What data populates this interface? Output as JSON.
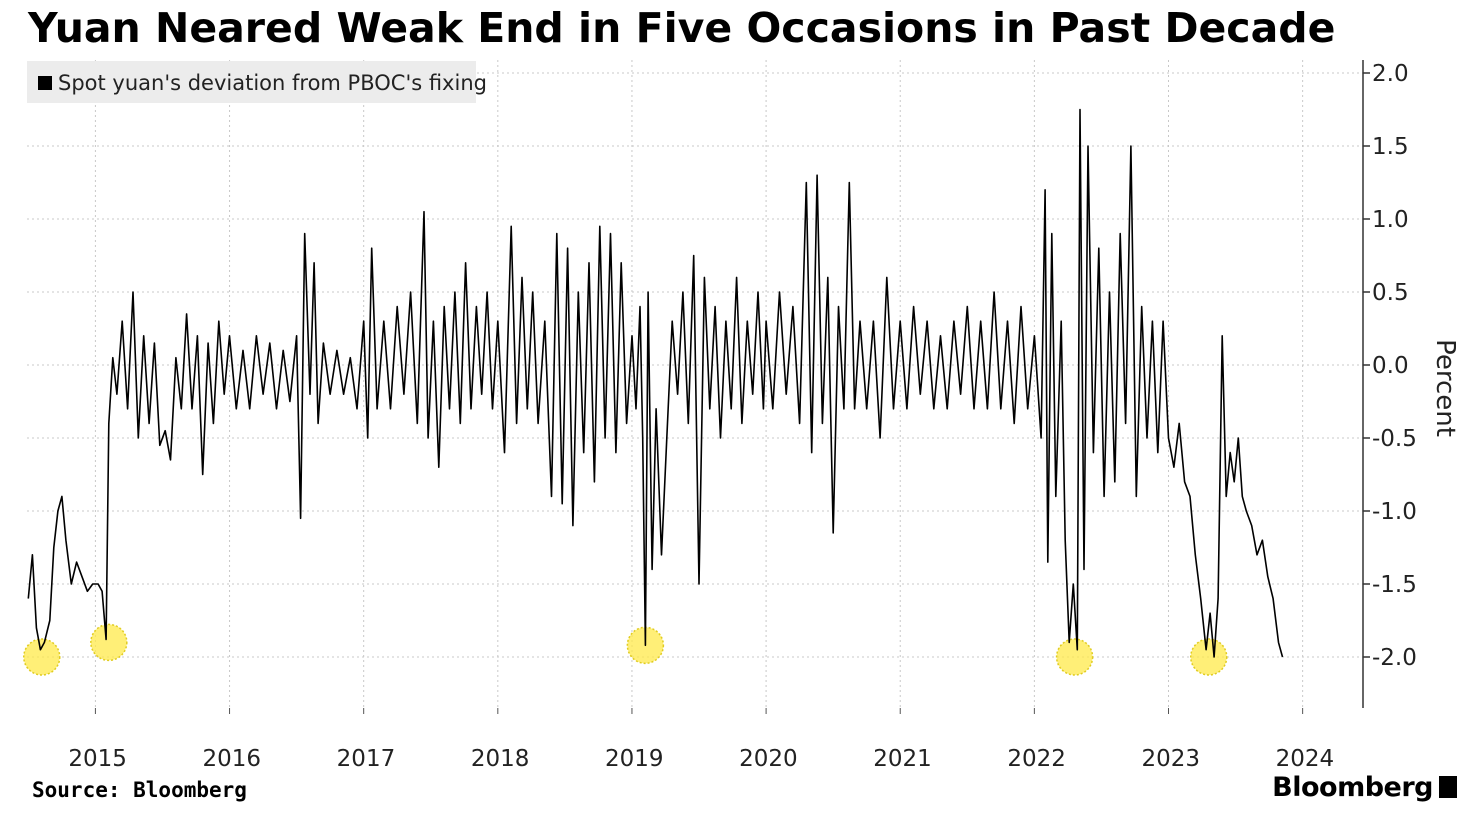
{
  "title": "Yuan Neared Weak End in Five Occasions in Past Decade",
  "source": "Source: Bloomberg",
  "brand": "Bloomberg",
  "colors": {
    "line": "#000000",
    "highlight": "#ffe94a",
    "grid": "#c8c8c8",
    "legend_bg": "#ececec"
  },
  "chart_data": {
    "type": "line",
    "legend": [
      "Spot yuan's deviation from PBOC's fixing"
    ],
    "ylabel": "Percent",
    "ylim": [
      -2.4,
      2.0
    ],
    "yticks": [
      2.0,
      1.5,
      1.0,
      0.5,
      0.0,
      -0.5,
      -1.0,
      -1.5,
      -2.0
    ],
    "ytick_labels": [
      "2.0",
      "1.5",
      "1.0",
      "0.5",
      "0.0",
      "-0.5",
      "-1.0",
      "-1.5",
      "-2.0"
    ],
    "xlim": [
      2014.49,
      2024.45
    ],
    "xticks": [
      2015,
      2016,
      2017,
      2018,
      2019,
      2020,
      2021,
      2022,
      2023,
      2024
    ],
    "xtick_labels": [
      "2015",
      "2016",
      "2017",
      "2018",
      "2019",
      "2020",
      "2021",
      "2022",
      "2023",
      "2024"
    ],
    "grid": true,
    "legend_position": "top-left",
    "highlighted_lows": [
      {
        "x": 2014.6,
        "y": -2.0
      },
      {
        "x": 2015.1,
        "y": -1.9
      },
      {
        "x": 2019.1,
        "y": -1.92
      },
      {
        "x": 2022.3,
        "y": -2.0
      },
      {
        "x": 2023.3,
        "y": -2.0
      }
    ],
    "series": [
      {
        "name": "Spot yuan's deviation from PBOC's fixing",
        "points": [
          [
            2014.5,
            -1.6
          ],
          [
            2014.53,
            -1.3
          ],
          [
            2014.56,
            -1.8
          ],
          [
            2014.59,
            -1.95
          ],
          [
            2014.62,
            -1.9
          ],
          [
            2014.66,
            -1.75
          ],
          [
            2014.69,
            -1.25
          ],
          [
            2014.72,
            -1.0
          ],
          [
            2014.75,
            -0.9
          ],
          [
            2014.78,
            -1.2
          ],
          [
            2014.82,
            -1.5
          ],
          [
            2014.86,
            -1.35
          ],
          [
            2014.9,
            -1.45
          ],
          [
            2014.94,
            -1.55
          ],
          [
            2014.98,
            -1.5
          ],
          [
            2015.02,
            -1.5
          ],
          [
            2015.05,
            -1.55
          ],
          [
            2015.08,
            -1.88
          ],
          [
            2015.1,
            -0.4
          ],
          [
            2015.13,
            0.05
          ],
          [
            2015.16,
            -0.2
          ],
          [
            2015.2,
            0.3
          ],
          [
            2015.24,
            -0.3
          ],
          [
            2015.28,
            0.5
          ],
          [
            2015.32,
            -0.5
          ],
          [
            2015.36,
            0.2
          ],
          [
            2015.4,
            -0.4
          ],
          [
            2015.44,
            0.15
          ],
          [
            2015.48,
            -0.55
          ],
          [
            2015.52,
            -0.45
          ],
          [
            2015.56,
            -0.65
          ],
          [
            2015.6,
            0.05
          ],
          [
            2015.64,
            -0.3
          ],
          [
            2015.68,
            0.35
          ],
          [
            2015.72,
            -0.3
          ],
          [
            2015.76,
            0.2
          ],
          [
            2015.8,
            -0.75
          ],
          [
            2015.84,
            0.15
          ],
          [
            2015.88,
            -0.4
          ],
          [
            2015.92,
            0.3
          ],
          [
            2015.96,
            -0.2
          ],
          [
            2016.0,
            0.2
          ],
          [
            2016.05,
            -0.3
          ],
          [
            2016.1,
            0.1
          ],
          [
            2016.15,
            -0.3
          ],
          [
            2016.2,
            0.2
          ],
          [
            2016.25,
            -0.2
          ],
          [
            2016.3,
            0.15
          ],
          [
            2016.35,
            -0.3
          ],
          [
            2016.4,
            0.1
          ],
          [
            2016.45,
            -0.25
          ],
          [
            2016.5,
            0.2
          ],
          [
            2016.53,
            -1.05
          ],
          [
            2016.56,
            0.9
          ],
          [
            2016.6,
            -0.2
          ],
          [
            2016.63,
            0.7
          ],
          [
            2016.66,
            -0.4
          ],
          [
            2016.7,
            0.15
          ],
          [
            2016.75,
            -0.2
          ],
          [
            2016.8,
            0.1
          ],
          [
            2016.85,
            -0.2
          ],
          [
            2016.9,
            0.05
          ],
          [
            2016.95,
            -0.3
          ],
          [
            2017.0,
            0.3
          ],
          [
            2017.03,
            -0.5
          ],
          [
            2017.06,
            0.8
          ],
          [
            2017.1,
            -0.3
          ],
          [
            2017.15,
            0.3
          ],
          [
            2017.2,
            -0.3
          ],
          [
            2017.25,
            0.4
          ],
          [
            2017.3,
            -0.2
          ],
          [
            2017.35,
            0.5
          ],
          [
            2017.4,
            -0.4
          ],
          [
            2017.45,
            1.05
          ],
          [
            2017.48,
            -0.5
          ],
          [
            2017.52,
            0.3
          ],
          [
            2017.56,
            -0.7
          ],
          [
            2017.6,
            0.4
          ],
          [
            2017.64,
            -0.3
          ],
          [
            2017.68,
            0.5
          ],
          [
            2017.72,
            -0.4
          ],
          [
            2017.76,
            0.7
          ],
          [
            2017.8,
            -0.3
          ],
          [
            2017.84,
            0.4
          ],
          [
            2017.88,
            -0.2
          ],
          [
            2017.92,
            0.5
          ],
          [
            2017.96,
            -0.3
          ],
          [
            2018.0,
            0.3
          ],
          [
            2018.05,
            -0.6
          ],
          [
            2018.1,
            0.95
          ],
          [
            2018.14,
            -0.4
          ],
          [
            2018.18,
            0.6
          ],
          [
            2018.22,
            -0.3
          ],
          [
            2018.26,
            0.5
          ],
          [
            2018.3,
            -0.4
          ],
          [
            2018.35,
            0.3
          ],
          [
            2018.4,
            -0.9
          ],
          [
            2018.44,
            0.9
          ],
          [
            2018.48,
            -0.95
          ],
          [
            2018.52,
            0.8
          ],
          [
            2018.56,
            -1.1
          ],
          [
            2018.6,
            0.5
          ],
          [
            2018.64,
            -0.6
          ],
          [
            2018.68,
            0.7
          ],
          [
            2018.72,
            -0.8
          ],
          [
            2018.76,
            0.95
          ],
          [
            2018.8,
            -0.5
          ],
          [
            2018.84,
            0.9
          ],
          [
            2018.88,
            -0.6
          ],
          [
            2018.92,
            0.7
          ],
          [
            2018.96,
            -0.4
          ],
          [
            2019.0,
            0.2
          ],
          [
            2019.03,
            -0.3
          ],
          [
            2019.06,
            0.4
          ],
          [
            2019.08,
            -0.5
          ],
          [
            2019.1,
            -1.92
          ],
          [
            2019.12,
            0.5
          ],
          [
            2019.15,
            -1.4
          ],
          [
            2019.18,
            -0.3
          ],
          [
            2019.22,
            -1.3
          ],
          [
            2019.26,
            -0.5
          ],
          [
            2019.3,
            0.3
          ],
          [
            2019.34,
            -0.2
          ],
          [
            2019.38,
            0.5
          ],
          [
            2019.42,
            -0.4
          ],
          [
            2019.46,
            0.75
          ],
          [
            2019.5,
            -1.5
          ],
          [
            2019.54,
            0.6
          ],
          [
            2019.58,
            -0.3
          ],
          [
            2019.62,
            0.4
          ],
          [
            2019.66,
            -0.5
          ],
          [
            2019.7,
            0.3
          ],
          [
            2019.74,
            -0.3
          ],
          [
            2019.78,
            0.6
          ],
          [
            2019.82,
            -0.4
          ],
          [
            2019.86,
            0.3
          ],
          [
            2019.9,
            -0.2
          ],
          [
            2019.94,
            0.5
          ],
          [
            2019.98,
            -0.3
          ],
          [
            2020.0,
            0.3
          ],
          [
            2020.05,
            -0.3
          ],
          [
            2020.1,
            0.5
          ],
          [
            2020.15,
            -0.2
          ],
          [
            2020.2,
            0.4
          ],
          [
            2020.25,
            -0.4
          ],
          [
            2020.3,
            1.25
          ],
          [
            2020.34,
            -0.6
          ],
          [
            2020.38,
            1.3
          ],
          [
            2020.42,
            -0.4
          ],
          [
            2020.46,
            0.6
          ],
          [
            2020.5,
            -1.15
          ],
          [
            2020.54,
            0.4
          ],
          [
            2020.58,
            -0.3
          ],
          [
            2020.62,
            1.25
          ],
          [
            2020.66,
            -0.3
          ],
          [
            2020.7,
            0.3
          ],
          [
            2020.75,
            -0.3
          ],
          [
            2020.8,
            0.3
          ],
          [
            2020.85,
            -0.5
          ],
          [
            2020.9,
            0.6
          ],
          [
            2020.95,
            -0.3
          ],
          [
            2021.0,
            0.3
          ],
          [
            2021.05,
            -0.3
          ],
          [
            2021.1,
            0.4
          ],
          [
            2021.15,
            -0.2
          ],
          [
            2021.2,
            0.3
          ],
          [
            2021.25,
            -0.3
          ],
          [
            2021.3,
            0.2
          ],
          [
            2021.35,
            -0.3
          ],
          [
            2021.4,
            0.3
          ],
          [
            2021.45,
            -0.2
          ],
          [
            2021.5,
            0.4
          ],
          [
            2021.55,
            -0.3
          ],
          [
            2021.6,
            0.3
          ],
          [
            2021.65,
            -0.3
          ],
          [
            2021.7,
            0.5
          ],
          [
            2021.75,
            -0.3
          ],
          [
            2021.8,
            0.3
          ],
          [
            2021.85,
            -0.4
          ],
          [
            2021.9,
            0.4
          ],
          [
            2021.95,
            -0.3
          ],
          [
            2022.0,
            0.2
          ],
          [
            2022.05,
            -0.5
          ],
          [
            2022.08,
            1.2
          ],
          [
            2022.1,
            -1.35
          ],
          [
            2022.13,
            0.9
          ],
          [
            2022.16,
            -0.9
          ],
          [
            2022.2,
            0.3
          ],
          [
            2022.23,
            -1.2
          ],
          [
            2022.26,
            -1.9
          ],
          [
            2022.29,
            -1.5
          ],
          [
            2022.32,
            -1.95
          ],
          [
            2022.34,
            1.75
          ],
          [
            2022.37,
            -1.4
          ],
          [
            2022.4,
            1.5
          ],
          [
            2022.44,
            -0.6
          ],
          [
            2022.48,
            0.8
          ],
          [
            2022.52,
            -0.9
          ],
          [
            2022.56,
            0.5
          ],
          [
            2022.6,
            -0.8
          ],
          [
            2022.64,
            0.9
          ],
          [
            2022.68,
            -0.4
          ],
          [
            2022.72,
            1.5
          ],
          [
            2022.76,
            -0.9
          ],
          [
            2022.8,
            0.4
          ],
          [
            2022.84,
            -0.5
          ],
          [
            2022.88,
            0.3
          ],
          [
            2022.92,
            -0.6
          ],
          [
            2022.96,
            0.3
          ],
          [
            2023.0,
            -0.5
          ],
          [
            2023.04,
            -0.7
          ],
          [
            2023.08,
            -0.4
          ],
          [
            2023.12,
            -0.8
          ],
          [
            2023.16,
            -0.9
          ],
          [
            2023.2,
            -1.3
          ],
          [
            2023.24,
            -1.6
          ],
          [
            2023.28,
            -1.95
          ],
          [
            2023.31,
            -1.7
          ],
          [
            2023.34,
            -2.0
          ],
          [
            2023.37,
            -1.6
          ],
          [
            2023.4,
            0.2
          ],
          [
            2023.43,
            -0.9
          ],
          [
            2023.46,
            -0.6
          ],
          [
            2023.49,
            -0.8
          ],
          [
            2023.52,
            -0.5
          ],
          [
            2023.55,
            -0.9
          ],
          [
            2023.58,
            -1.0
          ],
          [
            2023.62,
            -1.1
          ],
          [
            2023.66,
            -1.3
          ],
          [
            2023.7,
            -1.2
          ],
          [
            2023.74,
            -1.45
          ],
          [
            2023.78,
            -1.6
          ],
          [
            2023.82,
            -1.9
          ],
          [
            2023.85,
            -2.0
          ]
        ]
      }
    ]
  }
}
